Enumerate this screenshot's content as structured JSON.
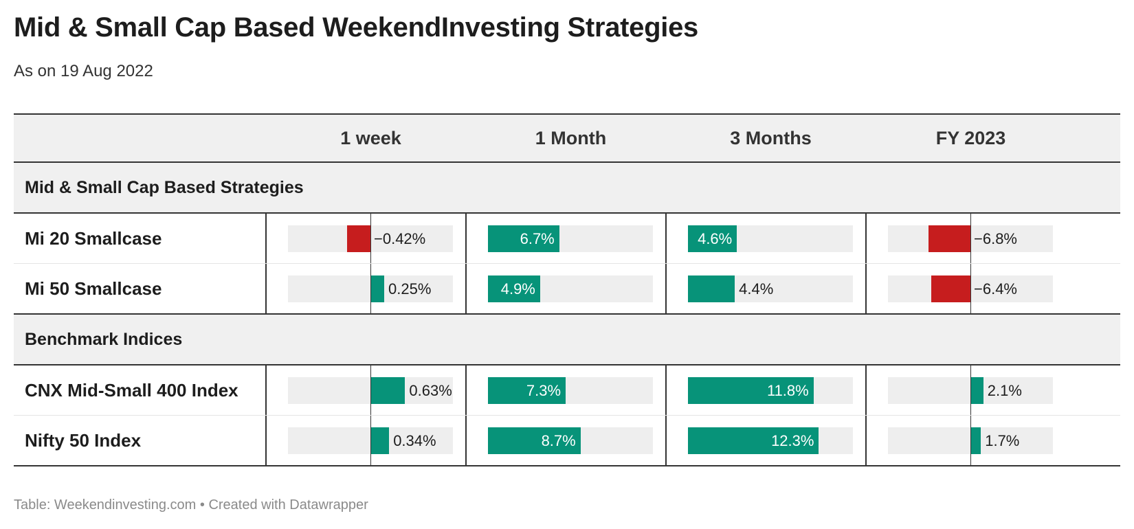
{
  "title": "Mid & Small Cap Based WeekendInvesting Strategies",
  "subtitle": "As on 19 Aug 2022",
  "footer": "Table: Weekendinvesting.com • Created with Datawrapper",
  "colors": {
    "positive": "#079379",
    "negative": "#c61d1e",
    "track": "#eeeeee",
    "header_bg": "#f0f0f0"
  },
  "chart_data": {
    "type": "table",
    "columns": [
      "1 week",
      "1 Month",
      "3 Months",
      "FY 2023"
    ],
    "groups": [
      {
        "name": "Mid & Small Cap Based Strategies",
        "rows": [
          {
            "name": "Mi 20 Smallcase",
            "values": [
              -0.42,
              6.7,
              4.6,
              -6.8
            ],
            "labels": [
              "−0.42%",
              "6.7%",
              "4.6%",
              "−6.8%"
            ]
          },
          {
            "name": "Mi 50 Smallcase",
            "values": [
              0.25,
              4.9,
              4.4,
              -6.4
            ],
            "labels": [
              "0.25%",
              "4.9%",
              "4.4%",
              "−6.4%"
            ]
          }
        ]
      },
      {
        "name": "Benchmark Indices",
        "rows": [
          {
            "name": "CNX Mid-Small 400 Index",
            "values": [
              0.63,
              7.3,
              11.8,
              2.1
            ],
            "labels": [
              "0.63%",
              "7.3%",
              "11.8%",
              "2.1%"
            ]
          },
          {
            "name": "Nifty 50 Index",
            "values": [
              0.34,
              8.7,
              12.3,
              1.7
            ],
            "labels": [
              "0.34%",
              "8.7%",
              "12.3%",
              "1.7%"
            ]
          }
        ]
      }
    ],
    "column_ranges": [
      [
        -1.5,
        1.5
      ],
      [
        0,
        15.5
      ],
      [
        0,
        15.5
      ],
      [
        -13.4,
        13.4
      ]
    ]
  }
}
